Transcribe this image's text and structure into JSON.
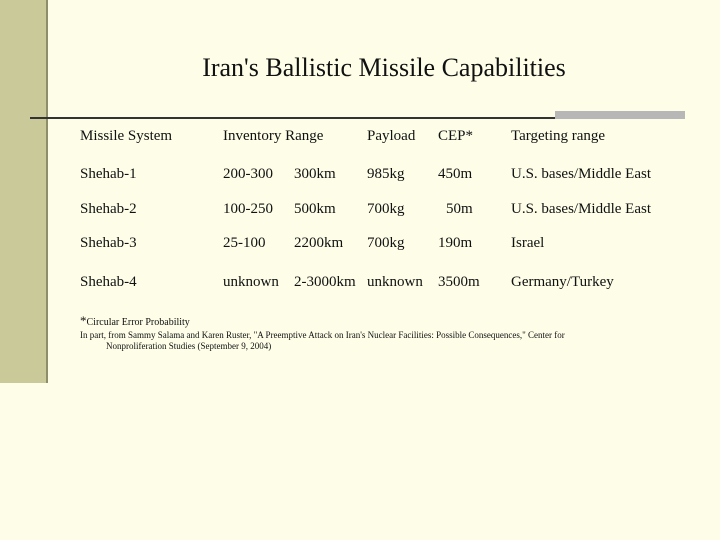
{
  "slide": {
    "title": "Iran's Ballistic Missile Capabilities"
  },
  "table": {
    "headers": {
      "system": "Missile System",
      "inventory_range": "Inventory Range",
      "payload": "Payload",
      "cep": "CEP*",
      "targeting": "Targeting range"
    },
    "rows": [
      {
        "system": "Shehab-1",
        "inventory": "200-300",
        "range": "300km",
        "payload": "985kg",
        "cep": "450m",
        "targeting": "U.S. bases/Middle East"
      },
      {
        "system": "Shehab-2",
        "inventory": "100-250",
        "range": "500km",
        "payload": "700kg",
        "cep": "50m",
        "targeting": "U.S. bases/Middle East"
      },
      {
        "system": "Shehab-3",
        "inventory": "25-100",
        "range": "2200km",
        "payload": "700kg",
        "cep": "190m",
        "targeting": "Israel"
      },
      {
        "system": "Shehab-4",
        "inventory": "unknown",
        "range": "2-3000km",
        "payload": "unknown",
        "cep": "3500m",
        "targeting": "Germany/Turkey"
      }
    ]
  },
  "footnote": {
    "star": "*",
    "text": "Circular Error Probability"
  },
  "source": {
    "line1": "In part, from Sammy Salama and Karen Ruster, \"A Preemptive Attack on Iran's Nuclear Facilities: Possible Consequences,\" Center for",
    "line2": "Nonproliferation Studies (September 9, 2004)"
  },
  "colors": {
    "background": "#fdfde8",
    "sidebar": "#c9c99a",
    "rule_accent": "#b7b7b7"
  }
}
